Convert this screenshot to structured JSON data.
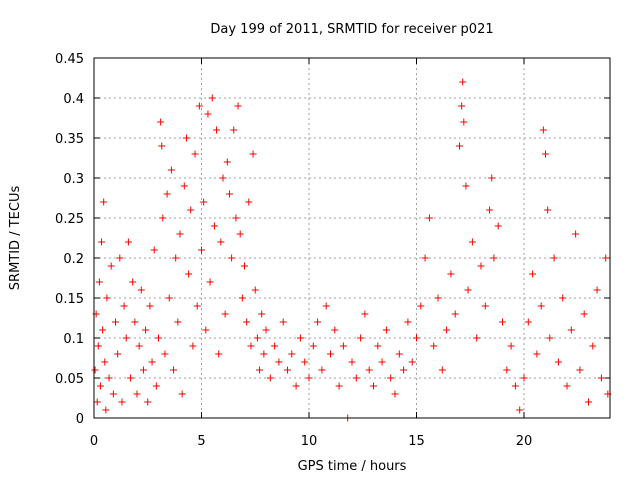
{
  "chart_data": {
    "type": "scatter",
    "title": "Day 199 of 2011, SRMTID for receiver p021",
    "xlabel": "GPS time / hours",
    "ylabel": "SRMTID / TECUs",
    "xlim": [
      0,
      24
    ],
    "ylim": [
      0,
      0.45
    ],
    "x_ticks": [
      0,
      5,
      10,
      15,
      20
    ],
    "y_ticks": [
      0,
      0.05,
      0.1,
      0.15,
      0.2,
      0.25,
      0.3,
      0.35,
      0.4,
      0.45
    ],
    "x_tick_labels": [
      "0",
      "5",
      "10",
      "15",
      "20"
    ],
    "y_tick_labels": [
      "0",
      "0.05",
      "0.1",
      "0.15",
      "0.2",
      "0.25",
      "0.3",
      "0.35",
      "0.4",
      "0.45"
    ],
    "grid": true,
    "marker": "+",
    "series_color": "#ff0000",
    "points": [
      [
        0.05,
        0.06
      ],
      [
        0.1,
        0.13
      ],
      [
        0.15,
        0.02
      ],
      [
        0.2,
        0.09
      ],
      [
        0.25,
        0.17
      ],
      [
        0.3,
        0.04
      ],
      [
        0.35,
        0.22
      ],
      [
        0.4,
        0.11
      ],
      [
        0.45,
        0.27
      ],
      [
        0.5,
        0.07
      ],
      [
        0.55,
        0.01
      ],
      [
        0.6,
        0.15
      ],
      [
        0.7,
        0.05
      ],
      [
        0.8,
        0.19
      ],
      [
        0.9,
        0.03
      ],
      [
        1.0,
        0.12
      ],
      [
        1.1,
        0.08
      ],
      [
        1.2,
        0.2
      ],
      [
        1.3,
        0.02
      ],
      [
        1.4,
        0.14
      ],
      [
        1.5,
        0.1
      ],
      [
        1.6,
        0.22
      ],
      [
        1.7,
        0.05
      ],
      [
        1.8,
        0.17
      ],
      [
        1.9,
        0.12
      ],
      [
        2.0,
        0.03
      ],
      [
        2.1,
        0.09
      ],
      [
        2.2,
        0.16
      ],
      [
        2.3,
        0.06
      ],
      [
        2.4,
        0.11
      ],
      [
        2.5,
        0.02
      ],
      [
        2.6,
        0.14
      ],
      [
        2.7,
        0.07
      ],
      [
        2.8,
        0.21
      ],
      [
        2.9,
        0.04
      ],
      [
        3.0,
        0.1
      ],
      [
        3.1,
        0.37
      ],
      [
        3.15,
        0.34
      ],
      [
        3.2,
        0.25
      ],
      [
        3.3,
        0.08
      ],
      [
        3.4,
        0.28
      ],
      [
        3.5,
        0.15
      ],
      [
        3.6,
        0.31
      ],
      [
        3.7,
        0.06
      ],
      [
        3.8,
        0.2
      ],
      [
        3.9,
        0.12
      ],
      [
        4.0,
        0.23
      ],
      [
        4.1,
        0.03
      ],
      [
        4.2,
        0.29
      ],
      [
        4.3,
        0.35
      ],
      [
        4.4,
        0.18
      ],
      [
        4.5,
        0.26
      ],
      [
        4.6,
        0.09
      ],
      [
        4.7,
        0.33
      ],
      [
        4.8,
        0.14
      ],
      [
        4.9,
        0.39
      ],
      [
        5.0,
        0.21
      ],
      [
        5.1,
        0.27
      ],
      [
        5.2,
        0.11
      ],
      [
        5.3,
        0.38
      ],
      [
        5.4,
        0.17
      ],
      [
        5.5,
        0.4
      ],
      [
        5.6,
        0.24
      ],
      [
        5.7,
        0.36
      ],
      [
        5.8,
        0.08
      ],
      [
        5.9,
        0.22
      ],
      [
        6.0,
        0.3
      ],
      [
        6.1,
        0.13
      ],
      [
        6.2,
        0.32
      ],
      [
        6.3,
        0.28
      ],
      [
        6.4,
        0.2
      ],
      [
        6.5,
        0.36
      ],
      [
        6.6,
        0.25
      ],
      [
        6.7,
        0.39
      ],
      [
        6.8,
        0.23
      ],
      [
        6.9,
        0.15
      ],
      [
        7.0,
        0.19
      ],
      [
        7.1,
        0.12
      ],
      [
        7.2,
        0.27
      ],
      [
        7.3,
        0.09
      ],
      [
        7.4,
        0.33
      ],
      [
        7.5,
        0.16
      ],
      [
        7.6,
        0.1
      ],
      [
        7.7,
        0.06
      ],
      [
        7.8,
        0.13
      ],
      [
        7.9,
        0.08
      ],
      [
        8.0,
        0.11
      ],
      [
        8.2,
        0.05
      ],
      [
        8.4,
        0.09
      ],
      [
        8.6,
        0.07
      ],
      [
        8.8,
        0.12
      ],
      [
        9.0,
        0.06
      ],
      [
        9.2,
        0.08
      ],
      [
        9.4,
        0.04
      ],
      [
        9.6,
        0.1
      ],
      [
        9.8,
        0.07
      ],
      [
        10.0,
        0.05
      ],
      [
        10.2,
        0.09
      ],
      [
        10.4,
        0.12
      ],
      [
        10.6,
        0.06
      ],
      [
        10.8,
        0.14
      ],
      [
        11.0,
        0.08
      ],
      [
        11.2,
        0.11
      ],
      [
        11.4,
        0.04
      ],
      [
        11.6,
        0.09
      ],
      [
        11.8,
        0.0
      ],
      [
        12.0,
        0.07
      ],
      [
        12.2,
        0.05
      ],
      [
        12.4,
        0.1
      ],
      [
        12.6,
        0.13
      ],
      [
        12.8,
        0.06
      ],
      [
        13.0,
        0.04
      ],
      [
        13.2,
        0.09
      ],
      [
        13.4,
        0.07
      ],
      [
        13.6,
        0.11
      ],
      [
        13.8,
        0.05
      ],
      [
        14.0,
        0.03
      ],
      [
        14.2,
        0.08
      ],
      [
        14.4,
        0.06
      ],
      [
        14.6,
        0.12
      ],
      [
        14.8,
        0.07
      ],
      [
        15.0,
        0.1
      ],
      [
        15.2,
        0.14
      ],
      [
        15.4,
        0.2
      ],
      [
        15.6,
        0.25
      ],
      [
        15.8,
        0.09
      ],
      [
        16.0,
        0.15
      ],
      [
        16.2,
        0.06
      ],
      [
        16.4,
        0.11
      ],
      [
        16.6,
        0.18
      ],
      [
        16.8,
        0.13
      ],
      [
        17.0,
        0.34
      ],
      [
        17.1,
        0.39
      ],
      [
        17.15,
        0.42
      ],
      [
        17.2,
        0.37
      ],
      [
        17.3,
        0.29
      ],
      [
        17.4,
        0.16
      ],
      [
        17.6,
        0.22
      ],
      [
        17.8,
        0.1
      ],
      [
        18.0,
        0.19
      ],
      [
        18.2,
        0.14
      ],
      [
        18.4,
        0.26
      ],
      [
        18.5,
        0.3
      ],
      [
        18.6,
        0.2
      ],
      [
        18.8,
        0.24
      ],
      [
        19.0,
        0.12
      ],
      [
        19.2,
        0.06
      ],
      [
        19.4,
        0.09
      ],
      [
        19.6,
        0.04
      ],
      [
        19.8,
        0.01
      ],
      [
        20.0,
        0.05
      ],
      [
        20.2,
        0.12
      ],
      [
        20.4,
        0.18
      ],
      [
        20.6,
        0.08
      ],
      [
        20.8,
        0.14
      ],
      [
        20.9,
        0.36
      ],
      [
        21.0,
        0.33
      ],
      [
        21.1,
        0.26
      ],
      [
        21.2,
        0.1
      ],
      [
        21.4,
        0.2
      ],
      [
        21.6,
        0.07
      ],
      [
        21.8,
        0.15
      ],
      [
        22.0,
        0.04
      ],
      [
        22.2,
        0.11
      ],
      [
        22.4,
        0.23
      ],
      [
        22.6,
        0.06
      ],
      [
        22.8,
        0.13
      ],
      [
        23.0,
        0.02
      ],
      [
        23.2,
        0.09
      ],
      [
        23.4,
        0.16
      ],
      [
        23.6,
        0.05
      ],
      [
        23.8,
        0.2
      ],
      [
        23.9,
        0.03
      ]
    ]
  }
}
